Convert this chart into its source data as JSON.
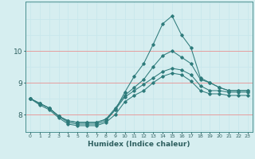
{
  "xlabel": "Humidex (Indice chaleur)",
  "background_color": "#d6eef0",
  "grid_color_white": "#c8e8ec",
  "grid_color_red": "#e89090",
  "line_color": "#2e7b7b",
  "x_values": [
    0,
    1,
    2,
    3,
    4,
    5,
    6,
    7,
    8,
    9,
    10,
    11,
    12,
    13,
    14,
    15,
    16,
    17,
    18,
    19,
    20,
    21,
    22,
    23
  ],
  "series": {
    "s1": [
      8.5,
      8.35,
      8.2,
      7.95,
      7.75,
      7.7,
      7.7,
      7.7,
      7.8,
      8.15,
      8.7,
      9.2,
      9.6,
      10.2,
      10.85,
      11.1,
      10.5,
      10.1,
      9.15,
      9.0,
      8.85,
      8.75,
      8.75,
      8.75
    ],
    "s2": [
      8.5,
      8.35,
      8.2,
      7.95,
      7.8,
      7.75,
      7.75,
      7.75,
      7.85,
      8.2,
      8.6,
      8.85,
      9.1,
      9.5,
      9.85,
      10.0,
      9.8,
      9.6,
      9.1,
      9.0,
      8.85,
      8.75,
      8.75,
      8.75
    ],
    "s3": [
      8.5,
      8.35,
      8.2,
      7.95,
      7.8,
      7.75,
      7.75,
      7.75,
      7.85,
      8.15,
      8.55,
      8.75,
      8.95,
      9.15,
      9.35,
      9.45,
      9.4,
      9.25,
      8.9,
      8.75,
      8.75,
      8.7,
      8.7,
      8.7
    ],
    "s4": [
      8.5,
      8.3,
      8.15,
      7.9,
      7.7,
      7.65,
      7.65,
      7.65,
      7.75,
      8.0,
      8.4,
      8.6,
      8.75,
      9.0,
      9.2,
      9.3,
      9.25,
      9.05,
      8.75,
      8.65,
      8.65,
      8.6,
      8.6,
      8.6
    ]
  },
  "ylim": [
    7.45,
    11.55
  ],
  "yticks": [
    8,
    9,
    10
  ],
  "xlim": [
    -0.5,
    23.5
  ],
  "xticks": [
    0,
    1,
    2,
    3,
    4,
    5,
    6,
    7,
    8,
    9,
    10,
    11,
    12,
    13,
    14,
    15,
    16,
    17,
    18,
    19,
    20,
    21,
    22,
    23
  ]
}
